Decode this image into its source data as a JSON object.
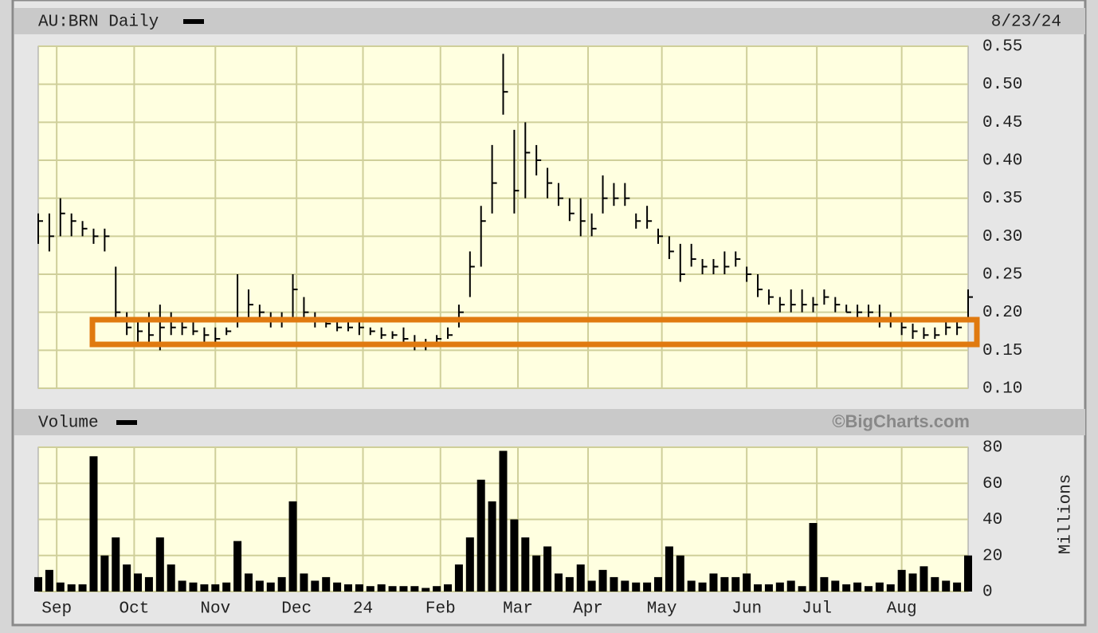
{
  "chart_data": [
    {
      "type": "ohlc",
      "title": "AU:BRN Daily",
      "date": "8/23/24",
      "color": "#000000",
      "background": "#ffffe0",
      "grid": true,
      "x": [
        0,
        3,
        6,
        9,
        12,
        15,
        18,
        21,
        24,
        27,
        30,
        33,
        36,
        39,
        42,
        45,
        48,
        51,
        54,
        57,
        60,
        63,
        66,
        69,
        72,
        75,
        78,
        81,
        84,
        87,
        90,
        93,
        96,
        99,
        102,
        105,
        108,
        111,
        114,
        117,
        120,
        123,
        126,
        129,
        132,
        135,
        138,
        141,
        144,
        147,
        150,
        153,
        156,
        159,
        162,
        165,
        168,
        171,
        174,
        177,
        180,
        183,
        186,
        189,
        192,
        195,
        198,
        201,
        204,
        207,
        210,
        213,
        216,
        219,
        222,
        225,
        228,
        231,
        234,
        237,
        240,
        243,
        246,
        249,
        252
      ],
      "high": [
        0.33,
        0.33,
        0.35,
        0.33,
        0.32,
        0.31,
        0.31,
        0.26,
        0.2,
        0.19,
        0.2,
        0.21,
        0.2,
        0.19,
        0.19,
        0.18,
        0.18,
        0.18,
        0.25,
        0.23,
        0.21,
        0.2,
        0.2,
        0.25,
        0.22,
        0.2,
        0.19,
        0.19,
        0.19,
        0.19,
        0.18,
        0.18,
        0.175,
        0.18,
        0.17,
        0.165,
        0.17,
        0.18,
        0.21,
        0.28,
        0.34,
        0.42,
        0.54,
        0.44,
        0.45,
        0.42,
        0.39,
        0.37,
        0.35,
        0.35,
        0.33,
        0.38,
        0.37,
        0.37,
        0.33,
        0.34,
        0.31,
        0.3,
        0.29,
        0.29,
        0.27,
        0.27,
        0.28,
        0.28,
        0.26,
        0.25,
        0.23,
        0.22,
        0.23,
        0.23,
        0.22,
        0.23,
        0.22,
        0.21,
        0.21,
        0.21,
        0.21,
        0.2,
        0.19,
        0.185,
        0.18,
        0.18,
        0.19,
        0.19,
        0.23
      ],
      "low": [
        0.29,
        0.28,
        0.3,
        0.3,
        0.3,
        0.29,
        0.28,
        0.19,
        0.17,
        0.16,
        0.16,
        0.15,
        0.17,
        0.17,
        0.17,
        0.16,
        0.16,
        0.17,
        0.18,
        0.19,
        0.19,
        0.18,
        0.18,
        0.19,
        0.19,
        0.18,
        0.18,
        0.175,
        0.175,
        0.17,
        0.17,
        0.165,
        0.165,
        0.16,
        0.15,
        0.15,
        0.16,
        0.165,
        0.18,
        0.22,
        0.26,
        0.33,
        0.46,
        0.33,
        0.35,
        0.38,
        0.35,
        0.34,
        0.32,
        0.3,
        0.3,
        0.33,
        0.34,
        0.34,
        0.31,
        0.31,
        0.29,
        0.27,
        0.24,
        0.26,
        0.25,
        0.25,
        0.25,
        0.26,
        0.24,
        0.22,
        0.21,
        0.2,
        0.2,
        0.2,
        0.2,
        0.21,
        0.2,
        0.2,
        0.19,
        0.19,
        0.18,
        0.18,
        0.17,
        0.165,
        0.165,
        0.165,
        0.17,
        0.17,
        0.19
      ],
      "close": [
        0.32,
        0.3,
        0.33,
        0.32,
        0.31,
        0.3,
        0.3,
        0.2,
        0.18,
        0.175,
        0.17,
        0.18,
        0.18,
        0.18,
        0.175,
        0.17,
        0.165,
        0.175,
        0.19,
        0.21,
        0.2,
        0.19,
        0.19,
        0.23,
        0.2,
        0.19,
        0.185,
        0.18,
        0.18,
        0.18,
        0.175,
        0.17,
        0.17,
        0.165,
        0.16,
        0.16,
        0.165,
        0.17,
        0.2,
        0.26,
        0.32,
        0.37,
        0.49,
        0.36,
        0.41,
        0.4,
        0.37,
        0.35,
        0.33,
        0.32,
        0.31,
        0.35,
        0.35,
        0.35,
        0.32,
        0.32,
        0.3,
        0.28,
        0.25,
        0.27,
        0.26,
        0.26,
        0.26,
        0.27,
        0.25,
        0.23,
        0.22,
        0.21,
        0.21,
        0.21,
        0.21,
        0.22,
        0.21,
        0.2,
        0.2,
        0.2,
        0.19,
        0.19,
        0.18,
        0.175,
        0.17,
        0.17,
        0.18,
        0.18,
        0.22
      ],
      "xlim": [
        0,
        252
      ],
      "ylim": [
        0.1,
        0.55
      ],
      "yticks": [
        {
          "value": 0.1,
          "label": "0.10"
        },
        0.15,
        {
          "value": 0.2,
          "label": "0.20"
        },
        0.25,
        {
          "value": 0.3,
          "label": "0.30"
        },
        0.35,
        {
          "value": 0.4,
          "label": "0.40"
        },
        0.45,
        {
          "value": 0.5,
          "label": "0.50"
        },
        0.55
      ]
    },
    {
      "type": "bar",
      "title": "Volume",
      "credit": "©BigCharts.com",
      "y_label": "Millions",
      "color": "#000000",
      "background": "#ffffe0",
      "grid": true,
      "x": [
        0,
        3,
        6,
        9,
        12,
        15,
        18,
        21,
        24,
        27,
        30,
        33,
        36,
        39,
        42,
        45,
        48,
        51,
        54,
        57,
        60,
        63,
        66,
        69,
        72,
        75,
        78,
        81,
        84,
        87,
        90,
        93,
        96,
        99,
        102,
        105,
        108,
        111,
        114,
        117,
        120,
        123,
        126,
        129,
        132,
        135,
        138,
        141,
        144,
        147,
        150,
        153,
        156,
        159,
        162,
        165,
        168,
        171,
        174,
        177,
        180,
        183,
        186,
        189,
        192,
        195,
        198,
        201,
        204,
        207,
        210,
        213,
        216,
        219,
        222,
        225,
        228,
        231,
        234,
        237,
        240,
        243,
        246,
        249,
        252
      ],
      "values": [
        8,
        12,
        5,
        4,
        4,
        75,
        20,
        30,
        15,
        10,
        8,
        30,
        15,
        6,
        5,
        4,
        4,
        5,
        28,
        10,
        6,
        5,
        8,
        50,
        10,
        6,
        8,
        5,
        4,
        4,
        3,
        4,
        3,
        3,
        3,
        2,
        3,
        4,
        15,
        30,
        62,
        50,
        78,
        40,
        30,
        20,
        25,
        10,
        8,
        15,
        6,
        12,
        8,
        6,
        5,
        5,
        8,
        25,
        20,
        6,
        5,
        10,
        8,
        8,
        10,
        4,
        4,
        5,
        6,
        3,
        38,
        8,
        6,
        4,
        5,
        3,
        5,
        4,
        12,
        10,
        14,
        8,
        6,
        5,
        20
      ],
      "xlim": [
        0,
        252
      ],
      "ylim": [
        0,
        80
      ],
      "yticks": [
        0,
        20,
        40,
        60,
        80
      ],
      "xticks": [
        {
          "value": 5,
          "label": "Sep"
        },
        {
          "value": 26,
          "label": "Oct"
        },
        {
          "value": 48,
          "label": "Nov"
        },
        {
          "value": 70,
          "label": "Dec"
        },
        {
          "value": 88,
          "label": "24"
        },
        {
          "value": 109,
          "label": "Feb"
        },
        {
          "value": 130,
          "label": "Mar"
        },
        {
          "value": 149,
          "label": "Apr"
        },
        {
          "value": 169,
          "label": "May"
        },
        {
          "value": 192,
          "label": "Jun"
        },
        {
          "value": 211,
          "label": "Jul"
        },
        {
          "value": 234,
          "label": "Aug"
        }
      ]
    }
  ]
}
